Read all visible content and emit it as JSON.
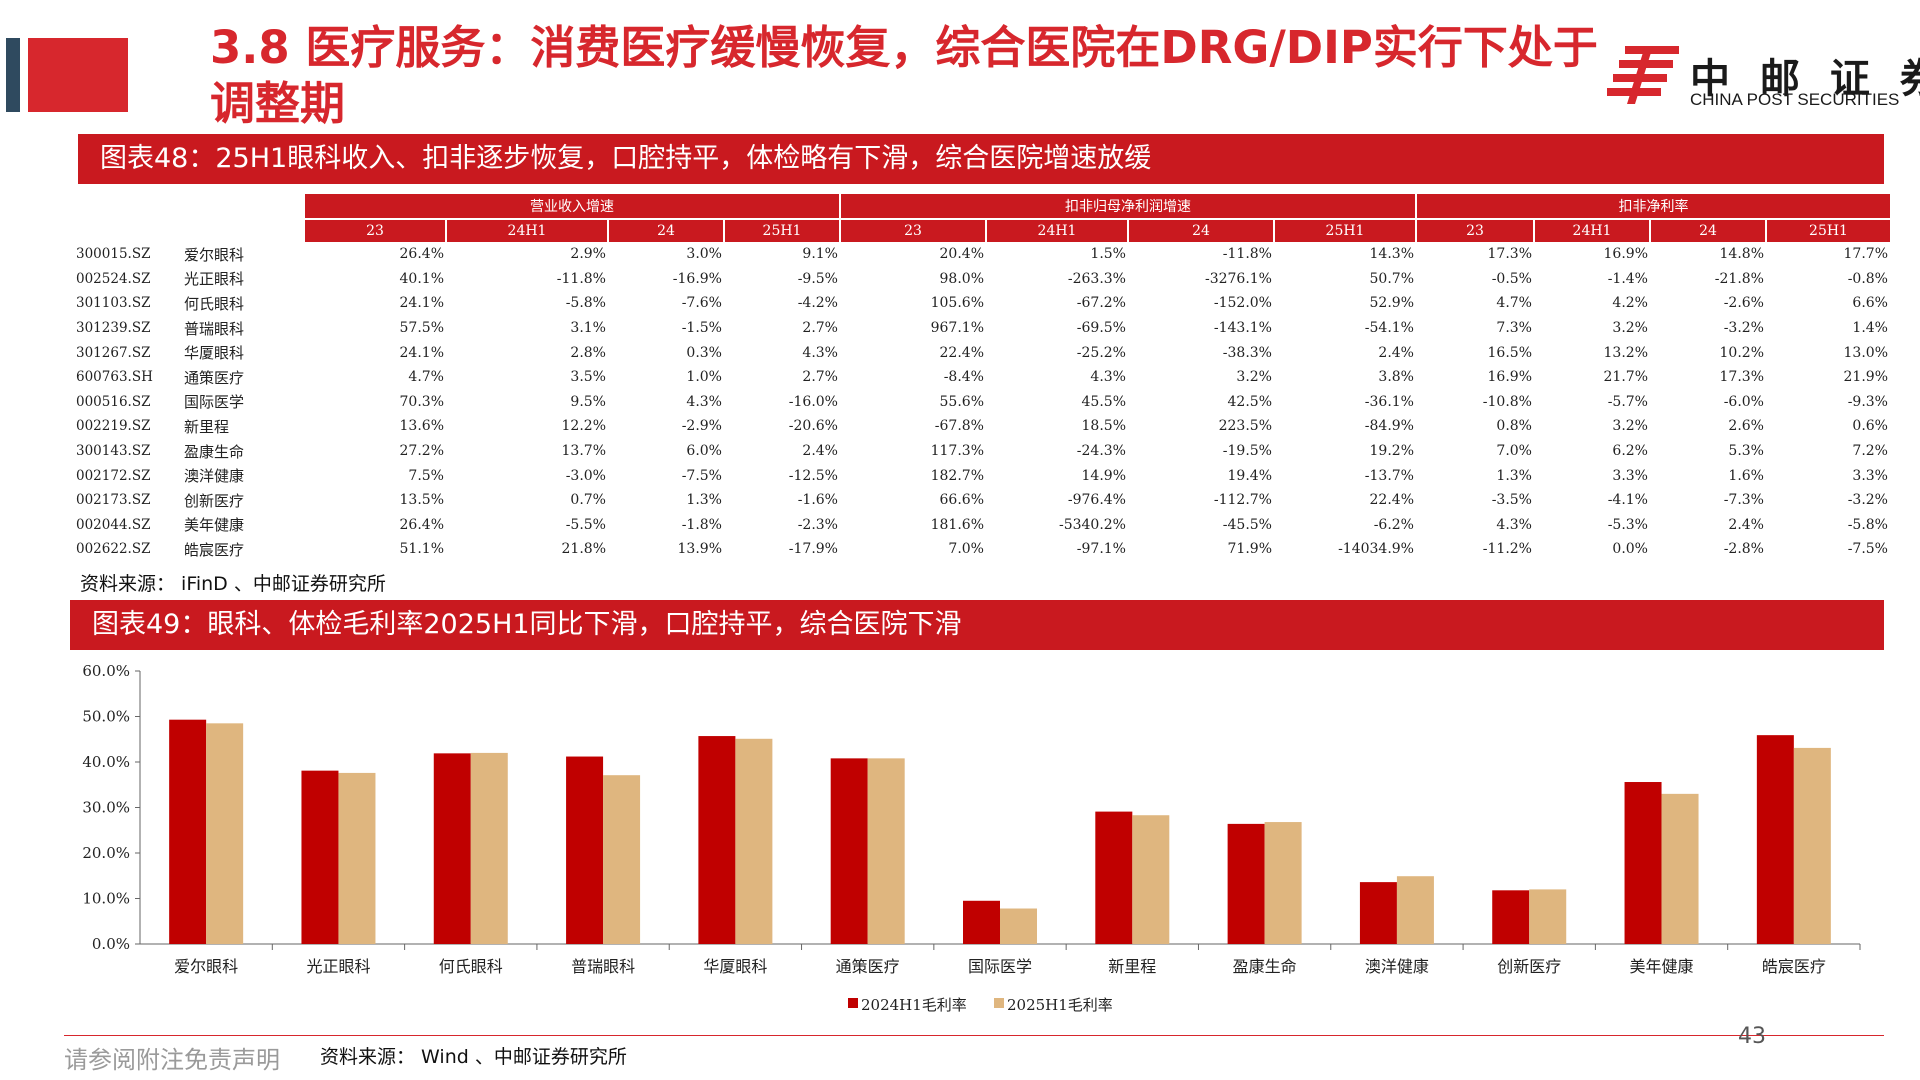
{
  "header": {
    "title": "3.8 医疗服务：消费医疗缓慢恢复，综合医院在DRG/DIP实行下处于调整期",
    "logo_cn": "中 邮 证 券",
    "logo_en": "CHINA POST SECURITIES"
  },
  "table48": {
    "caption": "图表48：25H1眼科收入、扣非逐步恢复，口腔持平，体检略有下滑，综合医院增速放缓",
    "groups": [
      "营业收入增速",
      "扣非归母净利润增速",
      "扣非净利率"
    ],
    "periods": [
      "23",
      "24H1",
      "24",
      "25H1"
    ],
    "rows": [
      {
        "code": "300015.SZ",
        "name": "爱尔眼科",
        "rev": [
          "26.4%",
          "2.9%",
          "3.0%",
          "9.1%"
        ],
        "np": [
          "20.4%",
          "1.5%",
          "-11.8%",
          "14.3%"
        ],
        "margin": [
          "17.3%",
          "16.9%",
          "14.8%",
          "17.7%"
        ]
      },
      {
        "code": "002524.SZ",
        "name": "光正眼科",
        "rev": [
          "40.1%",
          "-11.8%",
          "-16.9%",
          "-9.5%"
        ],
        "np": [
          "98.0%",
          "-263.3%",
          "-3276.1%",
          "50.7%"
        ],
        "margin": [
          "-0.5%",
          "-1.4%",
          "-21.8%",
          "-0.8%"
        ]
      },
      {
        "code": "301103.SZ",
        "name": "何氏眼科",
        "rev": [
          "24.1%",
          "-5.8%",
          "-7.6%",
          "-4.2%"
        ],
        "np": [
          "105.6%",
          "-67.2%",
          "-152.0%",
          "52.9%"
        ],
        "margin": [
          "4.7%",
          "4.2%",
          "-2.6%",
          "6.6%"
        ]
      },
      {
        "code": "301239.SZ",
        "name": "普瑞眼科",
        "rev": [
          "57.5%",
          "3.1%",
          "-1.5%",
          "2.7%"
        ],
        "np": [
          "967.1%",
          "-69.5%",
          "-143.1%",
          "-54.1%"
        ],
        "margin": [
          "7.3%",
          "3.2%",
          "-3.2%",
          "1.4%"
        ]
      },
      {
        "code": "301267.SZ",
        "name": "华厦眼科",
        "rev": [
          "24.1%",
          "2.8%",
          "0.3%",
          "4.3%"
        ],
        "np": [
          "22.4%",
          "-25.2%",
          "-38.3%",
          "2.4%"
        ],
        "margin": [
          "16.5%",
          "13.2%",
          "10.2%",
          "13.0%"
        ]
      },
      {
        "code": "600763.SH",
        "name": "通策医疗",
        "rev": [
          "4.7%",
          "3.5%",
          "1.0%",
          "2.7%"
        ],
        "np": [
          "-8.4%",
          "4.3%",
          "3.2%",
          "3.8%"
        ],
        "margin": [
          "16.9%",
          "21.7%",
          "17.3%",
          "21.9%"
        ]
      },
      {
        "code": "000516.SZ",
        "name": "国际医学",
        "rev": [
          "70.3%",
          "9.5%",
          "4.3%",
          "-16.0%"
        ],
        "np": [
          "55.6%",
          "45.5%",
          "42.5%",
          "-36.1%"
        ],
        "margin": [
          "-10.8%",
          "-5.7%",
          "-6.0%",
          "-9.3%"
        ]
      },
      {
        "code": "002219.SZ",
        "name": "新里程",
        "rev": [
          "13.6%",
          "12.2%",
          "-2.9%",
          "-20.6%"
        ],
        "np": [
          "-67.8%",
          "18.5%",
          "223.5%",
          "-84.9%"
        ],
        "margin": [
          "0.8%",
          "3.2%",
          "2.6%",
          "0.6%"
        ]
      },
      {
        "code": "300143.SZ",
        "name": "盈康生命",
        "rev": [
          "27.2%",
          "13.7%",
          "6.0%",
          "2.4%"
        ],
        "np": [
          "117.3%",
          "-24.3%",
          "-19.5%",
          "19.2%"
        ],
        "margin": [
          "7.0%",
          "6.2%",
          "5.3%",
          "7.2%"
        ]
      },
      {
        "code": "002172.SZ",
        "name": "澳洋健康",
        "rev": [
          "7.5%",
          "-3.0%",
          "-7.5%",
          "-12.5%"
        ],
        "np": [
          "182.7%",
          "14.9%",
          "19.4%",
          "-13.7%"
        ],
        "margin": [
          "1.3%",
          "3.3%",
          "1.6%",
          "3.3%"
        ]
      },
      {
        "code": "002173.SZ",
        "name": "创新医疗",
        "rev": [
          "13.5%",
          "0.7%",
          "1.3%",
          "-1.6%"
        ],
        "np": [
          "66.6%",
          "-976.4%",
          "-112.7%",
          "22.4%"
        ],
        "margin": [
          "-3.5%",
          "-4.1%",
          "-7.3%",
          "-3.2%"
        ]
      },
      {
        "code": "002044.SZ",
        "name": "美年健康",
        "rev": [
          "26.4%",
          "-5.5%",
          "-1.8%",
          "-2.3%"
        ],
        "np": [
          "181.6%",
          "-5340.2%",
          "-45.5%",
          "-6.2%"
        ],
        "margin": [
          "4.3%",
          "-5.3%",
          "2.4%",
          "-5.8%"
        ]
      },
      {
        "code": "002622.SZ",
        "name": "皓宸医疗",
        "rev": [
          "51.1%",
          "21.8%",
          "13.9%",
          "-17.9%"
        ],
        "np": [
          "7.0%",
          "-97.1%",
          "71.9%",
          "-14034.9%"
        ],
        "margin": [
          "-11.2%",
          "0.0%",
          "-2.8%",
          "-7.5%"
        ]
      }
    ],
    "source": "资料来源： iFinD 、中邮证券研究所"
  },
  "chart49": {
    "caption": "图表49：眼科、体检毛利率2025H1同比下滑，口腔持平，综合医院下滑",
    "source": "资料来源： Wind 、中邮证券研究所"
  },
  "chart_data": {
    "type": "bar",
    "title": "",
    "xlabel": "",
    "ylabel": "",
    "categories": [
      "爱尔眼科",
      "光正眼科",
      "何氏眼科",
      "普瑞眼科",
      "华厦眼科",
      "通策医疗",
      "国际医学",
      "新里程",
      "盈康生命",
      "澳洋健康",
      "创新医疗",
      "美年健康",
      "皓宸医疗"
    ],
    "series": [
      {
        "name": "2024H1毛利率",
        "color": "#c00000",
        "values": [
          49.3,
          38.1,
          41.9,
          41.2,
          45.7,
          40.8,
          9.5,
          29.1,
          26.4,
          13.6,
          11.8,
          35.6,
          45.9
        ]
      },
      {
        "name": "2025H1毛利率",
        "color": "#dfb67f",
        "values": [
          48.5,
          37.6,
          42.0,
          37.1,
          45.1,
          40.8,
          7.8,
          28.3,
          26.8,
          14.9,
          12.0,
          33.0,
          43.1
        ]
      }
    ],
    "ylim": [
      0,
      60
    ],
    "yticks": [
      "0.0%",
      "10.0%",
      "20.0%",
      "30.0%",
      "40.0%",
      "50.0%",
      "60.0%"
    ],
    "legend_position": "bottom",
    "grid": false
  },
  "footer": {
    "disclaimer": "请参阅附注免责声明",
    "page": "43"
  }
}
